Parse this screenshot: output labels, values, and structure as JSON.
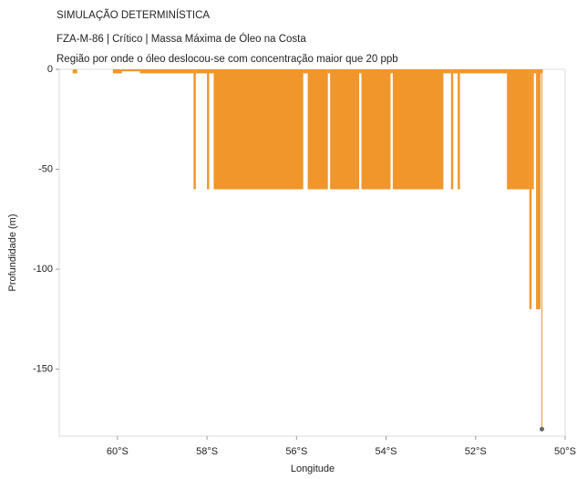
{
  "chart_data": {
    "type": "histogram",
    "title": "SIMULAÇÃO DETERMINÍSTICA",
    "subtitle": "FZA-M-86 | Crítico | Massa Máxima de Óleo na Costa",
    "description": "Região por onde o óleo deslocou-se com concentração maior que 20 ppb",
    "xlabel": "Longitude",
    "ylabel": "Profundidade (m)",
    "color": "#f0962a",
    "bins": [
      -61.0,
      -60.9,
      -60.1,
      -59.9,
      -59.5,
      -58.3,
      -58.25,
      -58.0,
      -57.95,
      -57.85,
      -55.85,
      -55.75,
      -55.3,
      -55.25,
      -54.6,
      -54.55,
      -53.9,
      -53.85,
      -52.72,
      -52.55,
      -52.5,
      -52.4,
      -52.35,
      -51.3,
      -50.8,
      -50.75,
      -50.7,
      -50.65,
      -50.55,
      -50.5
    ],
    "values": [
      -2,
      0,
      -2,
      -1,
      -2,
      -60,
      -2,
      -60,
      -2,
      -60,
      -2,
      -60,
      -2,
      -60,
      -2,
      -60,
      -2,
      -60,
      -2,
      -60,
      -2,
      -60,
      -2,
      -60,
      -120,
      -60,
      -2,
      -120,
      -2
    ],
    "marker": {
      "x": -50.52,
      "value": -180,
      "color": "#666666"
    },
    "xlim": [
      -61.3,
      -50
    ],
    "ylim": [
      -183.5,
      0
    ],
    "xticks": [
      {
        "value": -60,
        "label": "60°S"
      },
      {
        "value": -58,
        "label": "58°S"
      },
      {
        "value": -56,
        "label": "56°S"
      },
      {
        "value": -54,
        "label": "54°S"
      },
      {
        "value": -52,
        "label": "52°S"
      },
      {
        "value": -50,
        "label": "50°S"
      }
    ],
    "yticks": [
      0,
      -50,
      -100,
      -150
    ]
  }
}
